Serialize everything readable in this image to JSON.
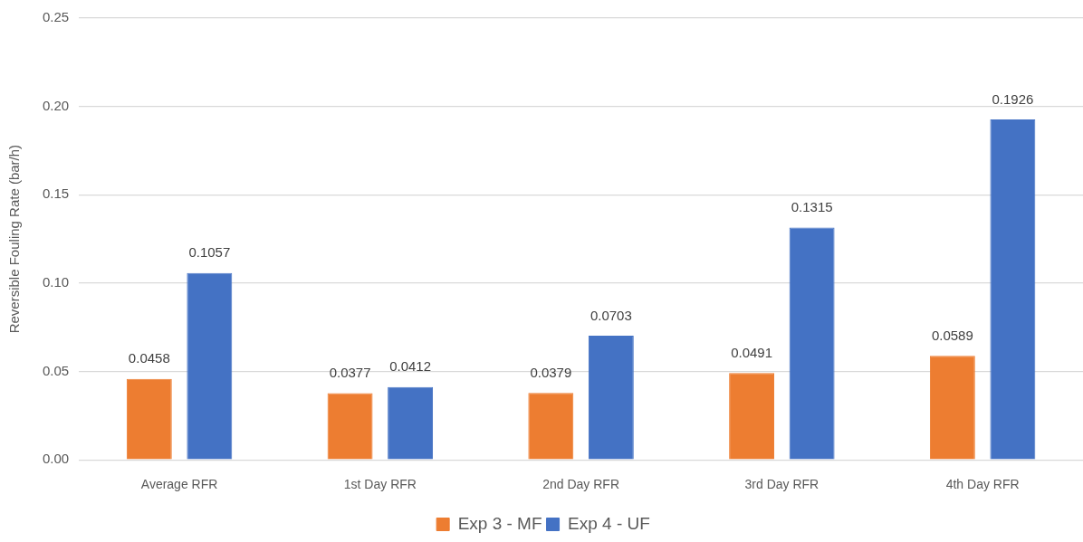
{
  "chart_data": {
    "type": "bar",
    "ylabel": "Reversible Fouling Rate (bar/h)",
    "categories": [
      "Average RFR",
      "1st Day RFR",
      "2nd Day RFR",
      "3rd Day RFR",
      "4th Day RFR"
    ],
    "series": [
      {
        "name": "Exp 3 - MF",
        "color": "#ed7d31",
        "values": [
          0.0458,
          0.0377,
          0.0379,
          0.0491,
          0.0589
        ]
      },
      {
        "name": "Exp 4 - UF",
        "color": "#4472c4",
        "values": [
          0.1057,
          0.0412,
          0.0703,
          0.1315,
          0.1926
        ]
      }
    ],
    "ylim": [
      0,
      0.25
    ],
    "yticks": [
      {
        "value": 0,
        "label": "0.00"
      },
      0.05,
      {
        "value": 0.1,
        "label": "0.10"
      },
      0.15,
      {
        "value": 0.2,
        "label": "0.20"
      },
      0.25
    ],
    "grid": "y",
    "legend": "bottom",
    "data_labels": true
  }
}
